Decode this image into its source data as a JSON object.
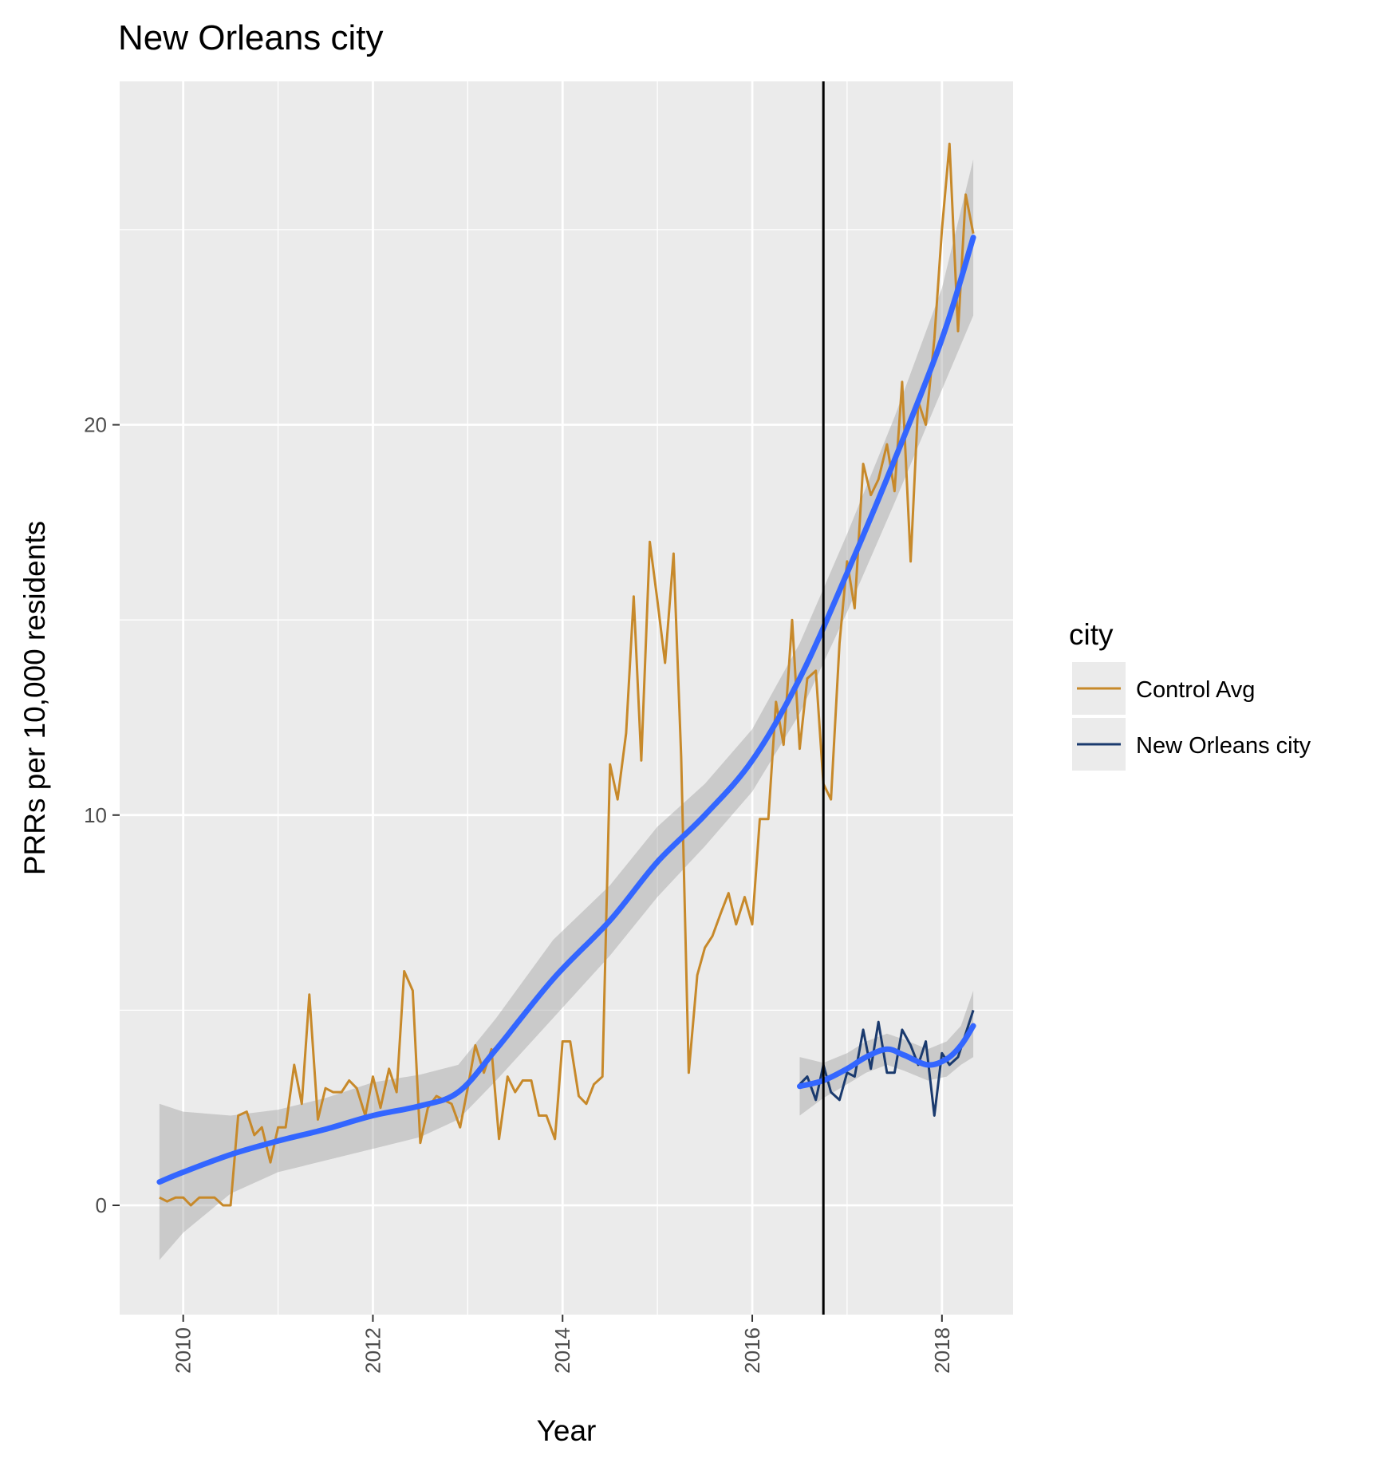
{
  "chart_data": {
    "type": "line",
    "title": "New Orleans city",
    "xlabel": "Year",
    "ylabel": "PRRs per 10,000 residents",
    "xlim": [
      2009.33,
      2018.75
    ],
    "ylim": [
      -2.8,
      28.8
    ],
    "x_ticks": [
      2010,
      2012,
      2014,
      2016,
      2018
    ],
    "y_ticks": [
      0,
      10,
      20
    ],
    "x_tick_labels": [
      "2010",
      "2012",
      "2014",
      "2016",
      "2018"
    ],
    "y_tick_labels": [
      "0",
      "10",
      "20"
    ],
    "grid": true,
    "legend_position": "right",
    "legend_title": "city",
    "vline_x": 2016.75,
    "series": [
      {
        "name": "Control Avg",
        "color": "#C7892A",
        "points": [
          [
            2009.75,
            0.2
          ],
          [
            2009.83,
            0.1
          ],
          [
            2009.92,
            0.2
          ],
          [
            2010.0,
            0.2
          ],
          [
            2010.08,
            0.0
          ],
          [
            2010.17,
            0.2
          ],
          [
            2010.25,
            0.2
          ],
          [
            2010.33,
            0.2
          ],
          [
            2010.42,
            0.0
          ],
          [
            2010.5,
            0.0
          ],
          [
            2010.58,
            2.3
          ],
          [
            2010.67,
            2.4
          ],
          [
            2010.75,
            1.8
          ],
          [
            2010.83,
            2.0
          ],
          [
            2010.92,
            1.1
          ],
          [
            2011.0,
            2.0
          ],
          [
            2011.08,
            2.0
          ],
          [
            2011.17,
            3.6
          ],
          [
            2011.25,
            2.6
          ],
          [
            2011.33,
            5.4
          ],
          [
            2011.42,
            2.2
          ],
          [
            2011.5,
            3.0
          ],
          [
            2011.58,
            2.9
          ],
          [
            2011.67,
            2.9
          ],
          [
            2011.75,
            3.2
          ],
          [
            2011.83,
            3.0
          ],
          [
            2011.92,
            2.3
          ],
          [
            2012.0,
            3.3
          ],
          [
            2012.08,
            2.5
          ],
          [
            2012.17,
            3.5
          ],
          [
            2012.25,
            2.9
          ],
          [
            2012.33,
            6.0
          ],
          [
            2012.42,
            5.5
          ],
          [
            2012.5,
            1.6
          ],
          [
            2012.58,
            2.5
          ],
          [
            2012.67,
            2.8
          ],
          [
            2012.75,
            2.7
          ],
          [
            2012.83,
            2.6
          ],
          [
            2012.92,
            2.0
          ],
          [
            2013.0,
            3.0
          ],
          [
            2013.08,
            4.1
          ],
          [
            2013.17,
            3.4
          ],
          [
            2013.25,
            4.0
          ],
          [
            2013.33,
            1.7
          ],
          [
            2013.42,
            3.3
          ],
          [
            2013.5,
            2.9
          ],
          [
            2013.58,
            3.2
          ],
          [
            2013.67,
            3.2
          ],
          [
            2013.75,
            2.3
          ],
          [
            2013.83,
            2.3
          ],
          [
            2013.92,
            1.7
          ],
          [
            2014.0,
            4.2
          ],
          [
            2014.08,
            4.2
          ],
          [
            2014.17,
            2.8
          ],
          [
            2014.25,
            2.6
          ],
          [
            2014.33,
            3.1
          ],
          [
            2014.42,
            3.3
          ],
          [
            2014.5,
            11.3
          ],
          [
            2014.58,
            10.4
          ],
          [
            2014.67,
            12.1
          ],
          [
            2014.75,
            15.6
          ],
          [
            2014.83,
            11.4
          ],
          [
            2014.92,
            17.0
          ],
          [
            2015.0,
            15.5
          ],
          [
            2015.08,
            13.9
          ],
          [
            2015.17,
            16.7
          ],
          [
            2015.25,
            11.5
          ],
          [
            2015.33,
            3.4
          ],
          [
            2015.42,
            5.9
          ],
          [
            2015.5,
            6.6
          ],
          [
            2015.58,
            6.9
          ],
          [
            2015.67,
            7.5
          ],
          [
            2015.75,
            8.0
          ],
          [
            2015.83,
            7.2
          ],
          [
            2015.92,
            7.9
          ],
          [
            2016.0,
            7.2
          ],
          [
            2016.08,
            9.9
          ],
          [
            2016.17,
            9.9
          ],
          [
            2016.25,
            12.9
          ],
          [
            2016.33,
            11.8
          ],
          [
            2016.42,
            15.0
          ],
          [
            2016.5,
            11.7
          ],
          [
            2016.58,
            13.5
          ],
          [
            2016.67,
            13.7
          ],
          [
            2016.75,
            10.8
          ],
          [
            2016.83,
            10.4
          ],
          [
            2016.92,
            14.4
          ],
          [
            2017.0,
            16.5
          ],
          [
            2017.08,
            15.3
          ],
          [
            2017.17,
            19.0
          ],
          [
            2017.25,
            18.2
          ],
          [
            2017.33,
            18.6
          ],
          [
            2017.42,
            19.5
          ],
          [
            2017.5,
            18.3
          ],
          [
            2017.58,
            21.1
          ],
          [
            2017.67,
            16.5
          ],
          [
            2017.75,
            20.6
          ],
          [
            2017.83,
            20.0
          ],
          [
            2017.92,
            22.2
          ],
          [
            2018.0,
            25.0
          ],
          [
            2018.08,
            27.2
          ],
          [
            2018.17,
            22.4
          ],
          [
            2018.25,
            25.9
          ],
          [
            2018.33,
            24.9
          ]
        ]
      },
      {
        "name": "New Orleans city",
        "color": "#1A3A6E",
        "points": [
          [
            2016.5,
            3.1
          ],
          [
            2016.58,
            3.3
          ],
          [
            2016.67,
            2.7
          ],
          [
            2016.75,
            3.6
          ],
          [
            2016.83,
            2.9
          ],
          [
            2016.92,
            2.7
          ],
          [
            2017.0,
            3.4
          ],
          [
            2017.08,
            3.3
          ],
          [
            2017.17,
            4.5
          ],
          [
            2017.25,
            3.5
          ],
          [
            2017.33,
            4.7
          ],
          [
            2017.42,
            3.4
          ],
          [
            2017.5,
            3.4
          ],
          [
            2017.58,
            4.5
          ],
          [
            2017.67,
            4.1
          ],
          [
            2017.75,
            3.6
          ],
          [
            2017.83,
            4.2
          ],
          [
            2017.92,
            2.3
          ],
          [
            2018.0,
            3.9
          ],
          [
            2018.08,
            3.6
          ],
          [
            2018.17,
            3.8
          ],
          [
            2018.25,
            4.4
          ],
          [
            2018.33,
            5.0
          ]
        ]
      }
    ],
    "smooth": [
      {
        "series": "Control Avg",
        "color": "#3366FF",
        "fill": "#999999",
        "x": [
          2009.75,
          2010.0,
          2010.5,
          2011.0,
          2011.5,
          2012.0,
          2012.5,
          2012.9,
          2013.3,
          2013.9,
          2014.5,
          2015.0,
          2015.5,
          2016.0,
          2016.5,
          2017.0,
          2017.5,
          2018.0,
          2018.33
        ],
        "y": [
          0.6,
          0.85,
          1.3,
          1.65,
          1.95,
          2.3,
          2.55,
          2.9,
          4.0,
          5.8,
          7.3,
          8.8,
          10.0,
          11.4,
          13.5,
          16.2,
          19.1,
          22.2,
          24.8
        ],
        "lower": [
          -1.4,
          -0.7,
          0.3,
          0.85,
          1.15,
          1.45,
          1.75,
          2.2,
          3.2,
          4.8,
          6.4,
          7.9,
          9.2,
          10.6,
          12.6,
          15.2,
          18.0,
          20.9,
          22.8
        ],
        "upper": [
          2.6,
          2.4,
          2.3,
          2.45,
          2.75,
          3.15,
          3.35,
          3.6,
          4.8,
          6.8,
          8.2,
          9.7,
          10.8,
          12.2,
          14.4,
          17.2,
          20.2,
          23.5,
          26.8
        ]
      },
      {
        "series": "New Orleans city",
        "color": "#3366FF",
        "fill": "#999999",
        "x": [
          2016.5,
          2016.75,
          2017.0,
          2017.2,
          2017.42,
          2017.6,
          2017.85,
          2018.05,
          2018.2,
          2018.33
        ],
        "y": [
          3.05,
          3.2,
          3.5,
          3.8,
          4.0,
          3.85,
          3.6,
          3.75,
          4.1,
          4.6
        ],
        "lower": [
          2.3,
          2.75,
          3.1,
          3.4,
          3.6,
          3.45,
          3.2,
          3.3,
          3.6,
          3.8
        ],
        "upper": [
          3.8,
          3.65,
          3.9,
          4.2,
          4.4,
          4.25,
          4.0,
          4.2,
          4.6,
          5.5
        ]
      }
    ]
  }
}
